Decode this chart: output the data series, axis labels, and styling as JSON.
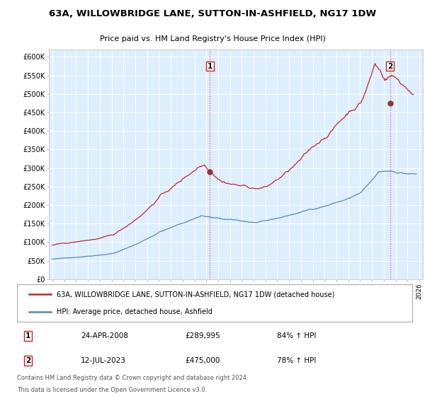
{
  "title": "63A, WILLOWBRIDGE LANE, SUTTON-IN-ASHFIELD, NG17 1DW",
  "subtitle": "Price paid vs. HM Land Registry's House Price Index (HPI)",
  "hpi_color": "#5588bb",
  "price_color": "#cc2222",
  "marker_color": "#993333",
  "bg_color": "#ddeeff",
  "grid_color": "#ffffff",
  "annotation_box_color": "#cc2222",
  "ylim": [
    0,
    620000
  ],
  "yticks": [
    0,
    50000,
    100000,
    150000,
    200000,
    250000,
    300000,
    350000,
    400000,
    450000,
    500000,
    550000,
    600000
  ],
  "xlim_start": 1994.7,
  "xlim_end": 2026.3,
  "transaction1": {
    "date": "24-APR-2008",
    "price": 289995,
    "x": 2008.31,
    "pct": "84%",
    "label": "1"
  },
  "transaction2": {
    "date": "12-JUL-2023",
    "price": 475000,
    "x": 2023.53,
    "pct": "78%",
    "label": "2"
  },
  "legend_line1": "63A, WILLOWBRIDGE LANE, SUTTON-IN-ASHFIELD, NG17 1DW (detached house)",
  "legend_line2": "HPI: Average price, detached house, Ashfield",
  "footer1": "Contains HM Land Registry data © Crown copyright and database right 2024.",
  "footer2": "This data is licensed under the Open Government Licence v3.0."
}
